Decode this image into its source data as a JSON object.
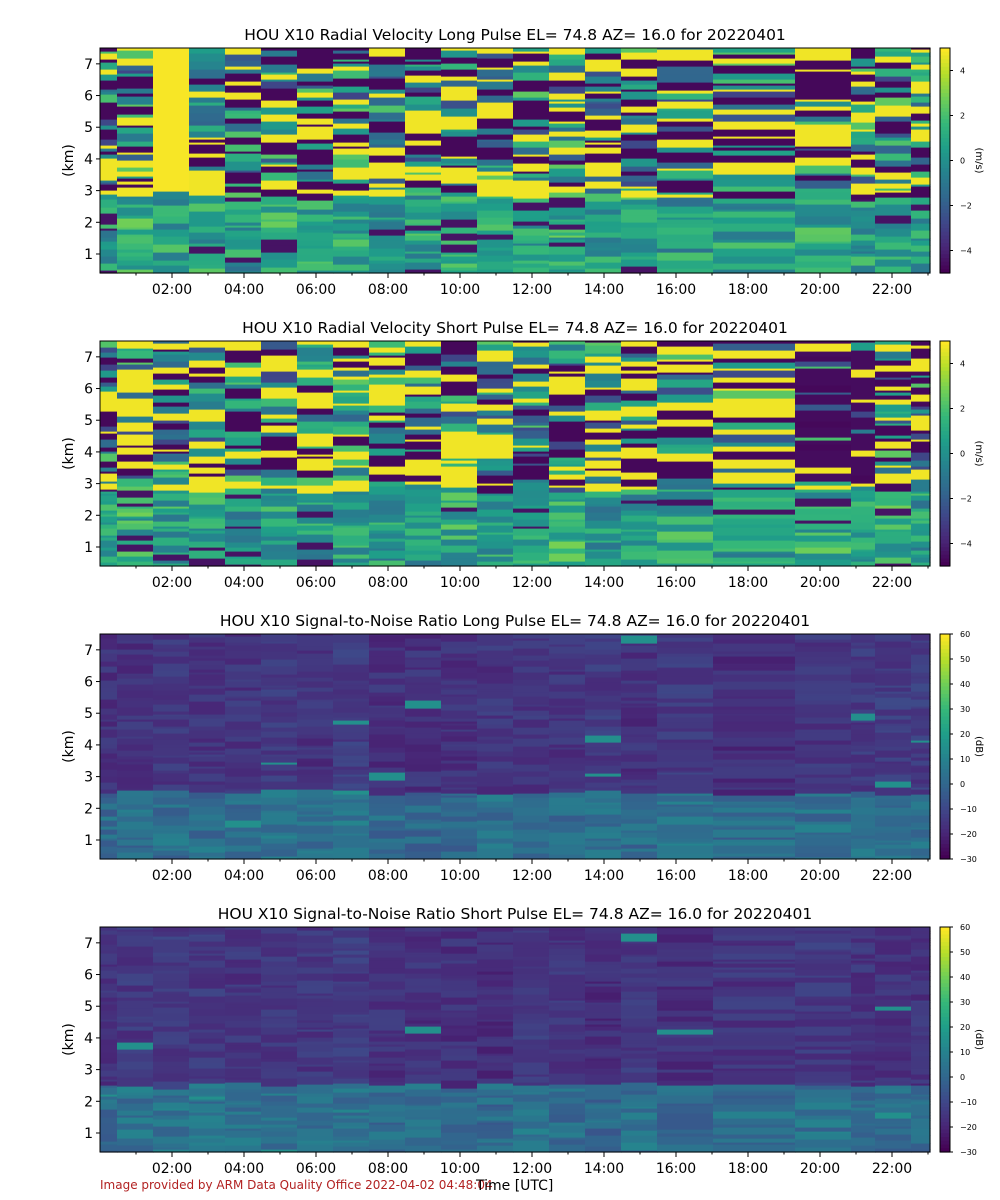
{
  "footer": "Image provided by ARM Data Quality Office 2022-04-02 04:48:04",
  "xlabel": "Time [UTC]",
  "chart_data": [
    {
      "type": "heatmap",
      "title": "HOU X10 Radial Velocity Long Pulse EL= 74.8 AZ= 16.0 for 20220401",
      "ylabel": "(km)",
      "colorbar_label": "(m/s)",
      "cbar_ticks": [
        -4,
        -2,
        0,
        2,
        4
      ],
      "cbar_range": [
        -5,
        5
      ],
      "x_ticks": [
        "02:00",
        "04:00",
        "06:00",
        "08:00",
        "10:00",
        "12:00",
        "14:00",
        "16:00",
        "18:00",
        "20:00",
        "22:00"
      ],
      "y_ticks": [
        "1",
        "2",
        "3",
        "4",
        "5",
        "6",
        "7"
      ],
      "ylim": [
        0.4,
        7.5
      ],
      "colormap": "viridis",
      "variable": "velocity",
      "seed": 11
    },
    {
      "type": "heatmap",
      "title": "HOU X10 Radial Velocity Short Pulse EL= 74.8 AZ= 16.0 for 20220401",
      "ylabel": "(km)",
      "colorbar_label": "(m/s)",
      "cbar_ticks": [
        -4,
        -2,
        0,
        2,
        4
      ],
      "cbar_range": [
        -5,
        5
      ],
      "x_ticks": [
        "02:00",
        "04:00",
        "06:00",
        "08:00",
        "10:00",
        "12:00",
        "14:00",
        "16:00",
        "18:00",
        "20:00",
        "22:00"
      ],
      "y_ticks": [
        "1",
        "2",
        "3",
        "4",
        "5",
        "6",
        "7"
      ],
      "ylim": [
        0.4,
        7.5
      ],
      "colormap": "viridis",
      "variable": "velocity",
      "seed": 23
    },
    {
      "type": "heatmap",
      "title": "HOU X10 Signal-to-Noise Ratio Long Pulse EL= 74.8 AZ= 16.0 for 20220401",
      "ylabel": "(km)",
      "colorbar_label": "(dB)",
      "cbar_ticks": [
        -30,
        -20,
        -10,
        0,
        10,
        20,
        30,
        40,
        50,
        60
      ],
      "cbar_range": [
        -30,
        60
      ],
      "x_ticks": [
        "02:00",
        "04:00",
        "06:00",
        "08:00",
        "10:00",
        "12:00",
        "14:00",
        "16:00",
        "18:00",
        "20:00",
        "22:00"
      ],
      "y_ticks": [
        "1",
        "2",
        "3",
        "4",
        "5",
        "6",
        "7"
      ],
      "ylim": [
        0.4,
        7.5
      ],
      "colormap": "viridis",
      "variable": "snr",
      "seed": 37
    },
    {
      "type": "heatmap",
      "title": "HOU X10 Signal-to-Noise Ratio Short Pulse EL= 74.8 AZ= 16.0 for 20220401",
      "ylabel": "(km)",
      "colorbar_label": "(dB)",
      "cbar_ticks": [
        -30,
        -20,
        -10,
        0,
        10,
        20,
        30,
        40,
        50,
        60
      ],
      "cbar_range": [
        -30,
        60
      ],
      "x_ticks": [
        "02:00",
        "04:00",
        "06:00",
        "08:00",
        "10:00",
        "12:00",
        "14:00",
        "16:00",
        "18:00",
        "20:00",
        "22:00"
      ],
      "y_ticks": [
        "1",
        "2",
        "3",
        "4",
        "5",
        "6",
        "7"
      ],
      "ylim": [
        0.4,
        7.5
      ],
      "colormap": "viridis",
      "variable": "snr",
      "seed": 53
    }
  ]
}
